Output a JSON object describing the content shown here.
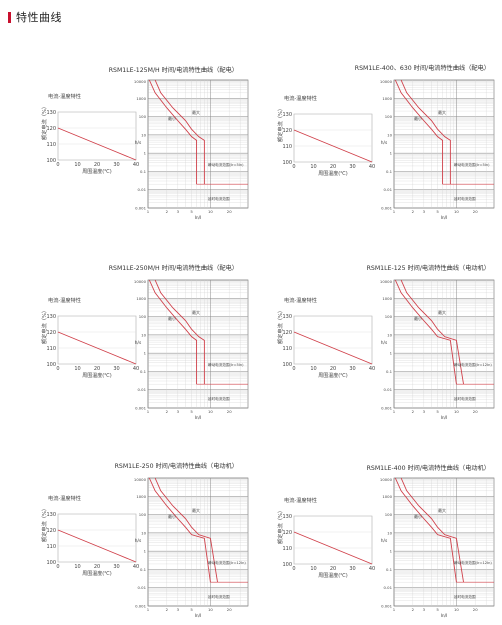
{
  "header": {
    "title": "特性曲线"
  },
  "colors": {
    "accent": "#c8102e",
    "curve": "#d0404a",
    "grid_major": "#888888",
    "grid_minor": "#cfcfcf",
    "text": "#444444"
  },
  "chart_data": [
    {
      "title": "RSM1LE-125M/H 时间/电流特性曲线（配电）",
      "temp_chart": {
        "type": "line",
        "title": "电流-温度特性",
        "ylabel": "额定电流（%）",
        "xlabel": "周围温度(℃)",
        "x": [
          0,
          10,
          20,
          30,
          40
        ],
        "y": [
          120,
          115,
          110,
          105,
          100
        ],
        "xticks": [
          "0",
          "10",
          "20",
          "30",
          "40"
        ],
        "yticks": [
          "100",
          "110",
          "120",
          "130"
        ],
        "xlim": [
          0,
          40
        ],
        "ylim": [
          100,
          130
        ]
      },
      "tc_chart": {
        "type": "line",
        "xlabel": "In/I",
        "ylabel": "h/s",
        "xscale": "log",
        "yscale": "log",
        "xlim": [
          1,
          40
        ],
        "ylim": [
          0.001,
          10000
        ],
        "annotations": [
          "最小",
          "最大",
          "瞬动电流范围(Ir=5In)",
          "延时电流范围"
        ],
        "series": [
          {
            "values": [
              [
                1.05,
                10000
              ],
              [
                1.3,
                2000
              ],
              [
                2,
                300
              ],
              [
                3,
                60
              ],
              [
                4,
                20
              ],
              [
                5,
                8
              ],
              [
                6,
                5
              ],
              [
                6,
                0.02
              ]
            ]
          },
          {
            "values": [
              [
                1.3,
                10000
              ],
              [
                1.6,
                2000
              ],
              [
                2.5,
                300
              ],
              [
                4,
                60
              ],
              [
                5,
                20
              ],
              [
                6.5,
                8
              ],
              [
                8,
                5
              ],
              [
                8,
                0.02
              ]
            ]
          }
        ]
      }
    },
    {
      "title": "RSM1LE-400、630 时间/电流特性曲线（配电）",
      "temp_chart": {
        "type": "line",
        "title": "电流-温度特性",
        "ylabel": "额定电流（%）",
        "xlabel": "周围温度(℃)",
        "x": [
          0,
          10,
          20,
          30,
          40
        ],
        "y": [
          120,
          115,
          110,
          105,
          100
        ],
        "xticks": [
          "0",
          "10",
          "20",
          "30",
          "40"
        ],
        "yticks": [
          "100",
          "110",
          "120",
          "130"
        ],
        "xlim": [
          0,
          40
        ],
        "ylim": [
          100,
          130
        ]
      },
      "tc_chart": {
        "type": "line",
        "xlabel": "In/I",
        "ylabel": "h/s",
        "xscale": "log",
        "yscale": "log",
        "xlim": [
          1,
          40
        ],
        "ylim": [
          0.001,
          10000
        ],
        "annotations": [
          "最小",
          "最大",
          "瞬动电流范围(Ir=5In)",
          "延时电流范围"
        ],
        "series": [
          {
            "values": [
              [
                1.05,
                10000
              ],
              [
                1.3,
                2000
              ],
              [
                2,
                300
              ],
              [
                3,
                60
              ],
              [
                4,
                20
              ],
              [
                5,
                8
              ],
              [
                6,
                5
              ],
              [
                6,
                0.02
              ]
            ]
          },
          {
            "values": [
              [
                1.3,
                10000
              ],
              [
                1.6,
                2000
              ],
              [
                2.5,
                300
              ],
              [
                4,
                60
              ],
              [
                5,
                20
              ],
              [
                6.5,
                8
              ],
              [
                8,
                5
              ],
              [
                8,
                0.02
              ]
            ]
          }
        ]
      }
    },
    {
      "title": "RSM1LE-250M/H 时间/电流特性曲线（配电）",
      "temp_chart": {
        "type": "line",
        "title": "电流-温度特性",
        "ylabel": "额定电流（%）",
        "xlabel": "周围温度(℃)",
        "x": [
          0,
          10,
          20,
          30,
          40
        ],
        "y": [
          120,
          115,
          110,
          105,
          100
        ],
        "xticks": [
          "0",
          "10",
          "20",
          "30",
          "40"
        ],
        "yticks": [
          "100",
          "110",
          "120",
          "130"
        ],
        "xlim": [
          0,
          40
        ],
        "ylim": [
          100,
          130
        ]
      },
      "tc_chart": {
        "type": "line",
        "xlabel": "In/I",
        "ylabel": "h/s",
        "xscale": "log",
        "yscale": "log",
        "xlim": [
          1,
          40
        ],
        "ylim": [
          0.001,
          10000
        ],
        "annotations": [
          "最小",
          "最大",
          "瞬动电流范围(Ir=5In)",
          "延时电流范围"
        ],
        "series": [
          {
            "values": [
              [
                1.05,
                10000
              ],
              [
                1.3,
                2000
              ],
              [
                2,
                300
              ],
              [
                3,
                60
              ],
              [
                4,
                20
              ],
              [
                5,
                8
              ],
              [
                6,
                5
              ],
              [
                6,
                0.02
              ]
            ]
          },
          {
            "values": [
              [
                1.3,
                10000
              ],
              [
                1.6,
                2000
              ],
              [
                2.5,
                300
              ],
              [
                4,
                60
              ],
              [
                5,
                20
              ],
              [
                6.5,
                8
              ],
              [
                8,
                5
              ],
              [
                8,
                0.02
              ]
            ]
          }
        ]
      }
    },
    {
      "title": "RSM1LE-125 时间/电流特性曲线（电动机）",
      "temp_chart": {
        "type": "line",
        "title": "电流-温度特性",
        "ylabel": "额定电流（%）",
        "xlabel": "周围温度(℃)",
        "x": [
          0,
          10,
          20,
          30,
          40
        ],
        "y": [
          120,
          115,
          110,
          105,
          100
        ],
        "xticks": [
          "0",
          "10",
          "20",
          "30",
          "40"
        ],
        "yticks": [
          "100",
          "110",
          "120",
          "130"
        ],
        "xlim": [
          0,
          40
        ],
        "ylim": [
          100,
          130
        ]
      },
      "tc_chart": {
        "type": "line",
        "xlabel": "In/I",
        "ylabel": "h/s",
        "xscale": "log",
        "yscale": "log",
        "xlim": [
          1,
          40
        ],
        "ylim": [
          0.001,
          10000
        ],
        "annotations": [
          "最小",
          "最大",
          "瞬动电流范围(Ir=12In)",
          "延时电流范围"
        ],
        "series": [
          {
            "values": [
              [
                1.05,
                10000
              ],
              [
                1.3,
                2000
              ],
              [
                2,
                300
              ],
              [
                3,
                60
              ],
              [
                4,
                20
              ],
              [
                5,
                8
              ],
              [
                8,
                5
              ],
              [
                10,
                0.02
              ]
            ]
          },
          {
            "values": [
              [
                1.3,
                10000
              ],
              [
                1.6,
                2000
              ],
              [
                2.5,
                300
              ],
              [
                4,
                60
              ],
              [
                5,
                20
              ],
              [
                6.5,
                8
              ],
              [
                10,
                5
              ],
              [
                13,
                0.02
              ]
            ]
          }
        ]
      }
    },
    {
      "title": "RSM1LE-250 时间/电流特性曲线（电动机）",
      "temp_chart": {
        "type": "line",
        "title": "电流-温度特性",
        "ylabel": "额定电流（%）",
        "xlabel": "周围温度(℃)",
        "x": [
          0,
          10,
          20,
          30,
          40
        ],
        "y": [
          120,
          115,
          110,
          105,
          100
        ],
        "xticks": [
          "0",
          "10",
          "20",
          "30",
          "40"
        ],
        "yticks": [
          "100",
          "110",
          "120",
          "130"
        ],
        "xlim": [
          0,
          40
        ],
        "ylim": [
          100,
          130
        ]
      },
      "tc_chart": {
        "type": "line",
        "xlabel": "In/I",
        "ylabel": "h/s",
        "xscale": "log",
        "yscale": "log",
        "xlim": [
          1,
          40
        ],
        "ylim": [
          0.001,
          10000
        ],
        "annotations": [
          "最小",
          "最大",
          "瞬动电流范围(Ir=12In)",
          "延时电流范围"
        ],
        "series": [
          {
            "values": [
              [
                1.05,
                10000
              ],
              [
                1.3,
                2000
              ],
              [
                2,
                300
              ],
              [
                3,
                60
              ],
              [
                4,
                20
              ],
              [
                5,
                8
              ],
              [
                8,
                5
              ],
              [
                10,
                0.02
              ]
            ]
          },
          {
            "values": [
              [
                1.3,
                10000
              ],
              [
                1.6,
                2000
              ],
              [
                2.5,
                300
              ],
              [
                4,
                60
              ],
              [
                5,
                20
              ],
              [
                6.5,
                8
              ],
              [
                10,
                5
              ],
              [
                13,
                0.02
              ]
            ]
          }
        ]
      }
    },
    {
      "title": "RSM1LE-400 时间/电流特性曲线（电动机）",
      "temp_chart": {
        "type": "line",
        "title": "电流-温度特性",
        "ylabel": "额定电流（%）",
        "xlabel": "周围温度(℃)",
        "x": [
          0,
          10,
          20,
          30,
          40
        ],
        "y": [
          120,
          115,
          110,
          105,
          100
        ],
        "xticks": [
          "0",
          "10",
          "20",
          "30",
          "40"
        ],
        "yticks": [
          "100",
          "110",
          "120",
          "130"
        ],
        "xlim": [
          0,
          40
        ],
        "ylim": [
          100,
          130
        ]
      },
      "tc_chart": {
        "type": "line",
        "xlabel": "In/I",
        "ylabel": "h/s",
        "xscale": "log",
        "yscale": "log",
        "xlim": [
          1,
          40
        ],
        "ylim": [
          0.001,
          10000
        ],
        "annotations": [
          "最小",
          "最大",
          "瞬动电流范围(Ir=12In)",
          "延时电流范围"
        ],
        "series": [
          {
            "values": [
              [
                1.05,
                10000
              ],
              [
                1.3,
                2000
              ],
              [
                2,
                300
              ],
              [
                3,
                60
              ],
              [
                4,
                20
              ],
              [
                5,
                8
              ],
              [
                8,
                5
              ],
              [
                10,
                0.02
              ]
            ]
          },
          {
            "values": [
              [
                1.3,
                10000
              ],
              [
                1.6,
                2000
              ],
              [
                2.5,
                300
              ],
              [
                4,
                60
              ],
              [
                5,
                20
              ],
              [
                6.5,
                8
              ],
              [
                10,
                5
              ],
              [
                13,
                0.02
              ]
            ]
          }
        ]
      }
    }
  ]
}
